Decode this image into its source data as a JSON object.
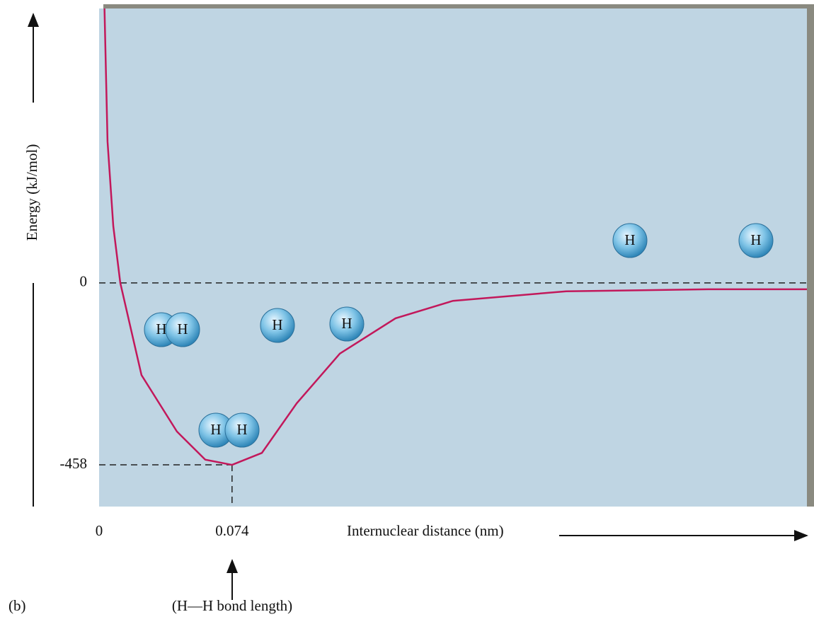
{
  "chart_data": {
    "type": "line",
    "x_label": "Internuclear distance (nm)",
    "y_label": "Energy (kJ/mol)",
    "xlim": [
      0,
      0.394
    ],
    "ylim": [
      -563,
      691
    ],
    "xticks": [
      0,
      0.074
    ],
    "yticks": [
      0,
      -458
    ],
    "series": [
      {
        "color": "#c2185b",
        "x": [
          0.003,
          0.0047,
          0.0079,
          0.0118,
          0.0236,
          0.0433,
          0.0591,
          0.074,
          0.0906,
          0.11,
          0.134,
          0.165,
          0.197,
          0.26,
          0.339,
          0.394
        ],
        "values": [
          691,
          356,
          143,
          0,
          -232,
          -374,
          -445,
          -458,
          -428,
          -303,
          -178,
          -89,
          -45,
          -21,
          -16,
          -16
        ]
      }
    ],
    "annotations": [
      "(H—H bond length)",
      "(b)"
    ],
    "atom_labels": [
      "H",
      "H",
      "H",
      "H",
      "H",
      "H",
      "H",
      "H"
    ]
  }
}
